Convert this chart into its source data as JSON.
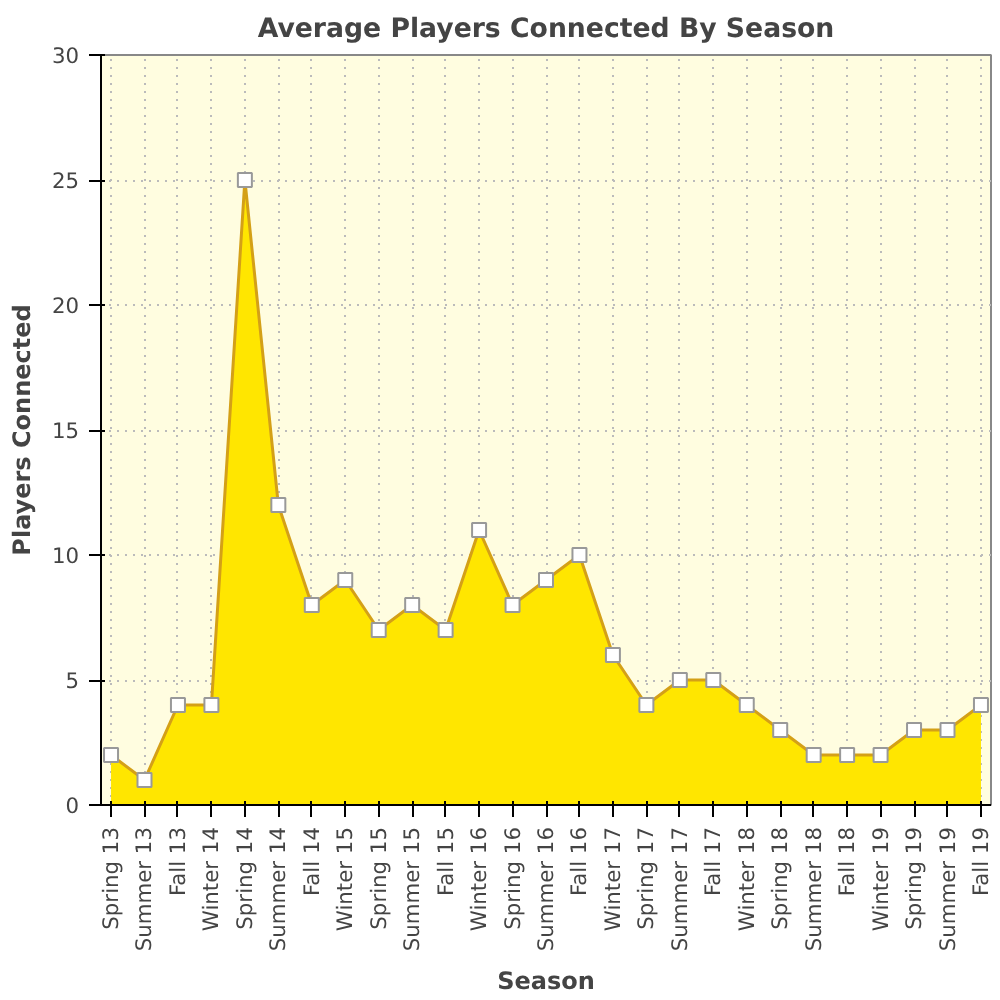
{
  "chart_data": {
    "type": "area",
    "title": "Average Players Connected By Season",
    "xlabel": "Season",
    "ylabel": "Players Connected",
    "categories": [
      "Spring 13",
      "Summer 13",
      "Fall 13",
      "Winter 14",
      "Spring 14",
      "Summer 14",
      "Fall 14",
      "Winter 15",
      "Spring 15",
      "Summer 15",
      "Fall 15",
      "Winter 16",
      "Spring 16",
      "Summer 16",
      "Fall 16",
      "Winter 17",
      "Spring 17",
      "Summer 17",
      "Fall 17",
      "Winter 18",
      "Spring 18",
      "Summer 18",
      "Fall 18",
      "Winter 19",
      "Spring 19",
      "Summer 19",
      "Fall 19"
    ],
    "series": [
      {
        "color": "#ffe600",
        "values": [
          2,
          1,
          4,
          4,
          25,
          12,
          8,
          9,
          7,
          8,
          7,
          11,
          8,
          9,
          10,
          6,
          4,
          5,
          5,
          4,
          3,
          2,
          2,
          2,
          3,
          3,
          4
        ]
      }
    ],
    "ylim": [
      0,
      30
    ],
    "yticks": [
      0,
      5,
      10,
      15,
      20,
      25,
      30
    ],
    "grid": true,
    "marker": "square"
  }
}
